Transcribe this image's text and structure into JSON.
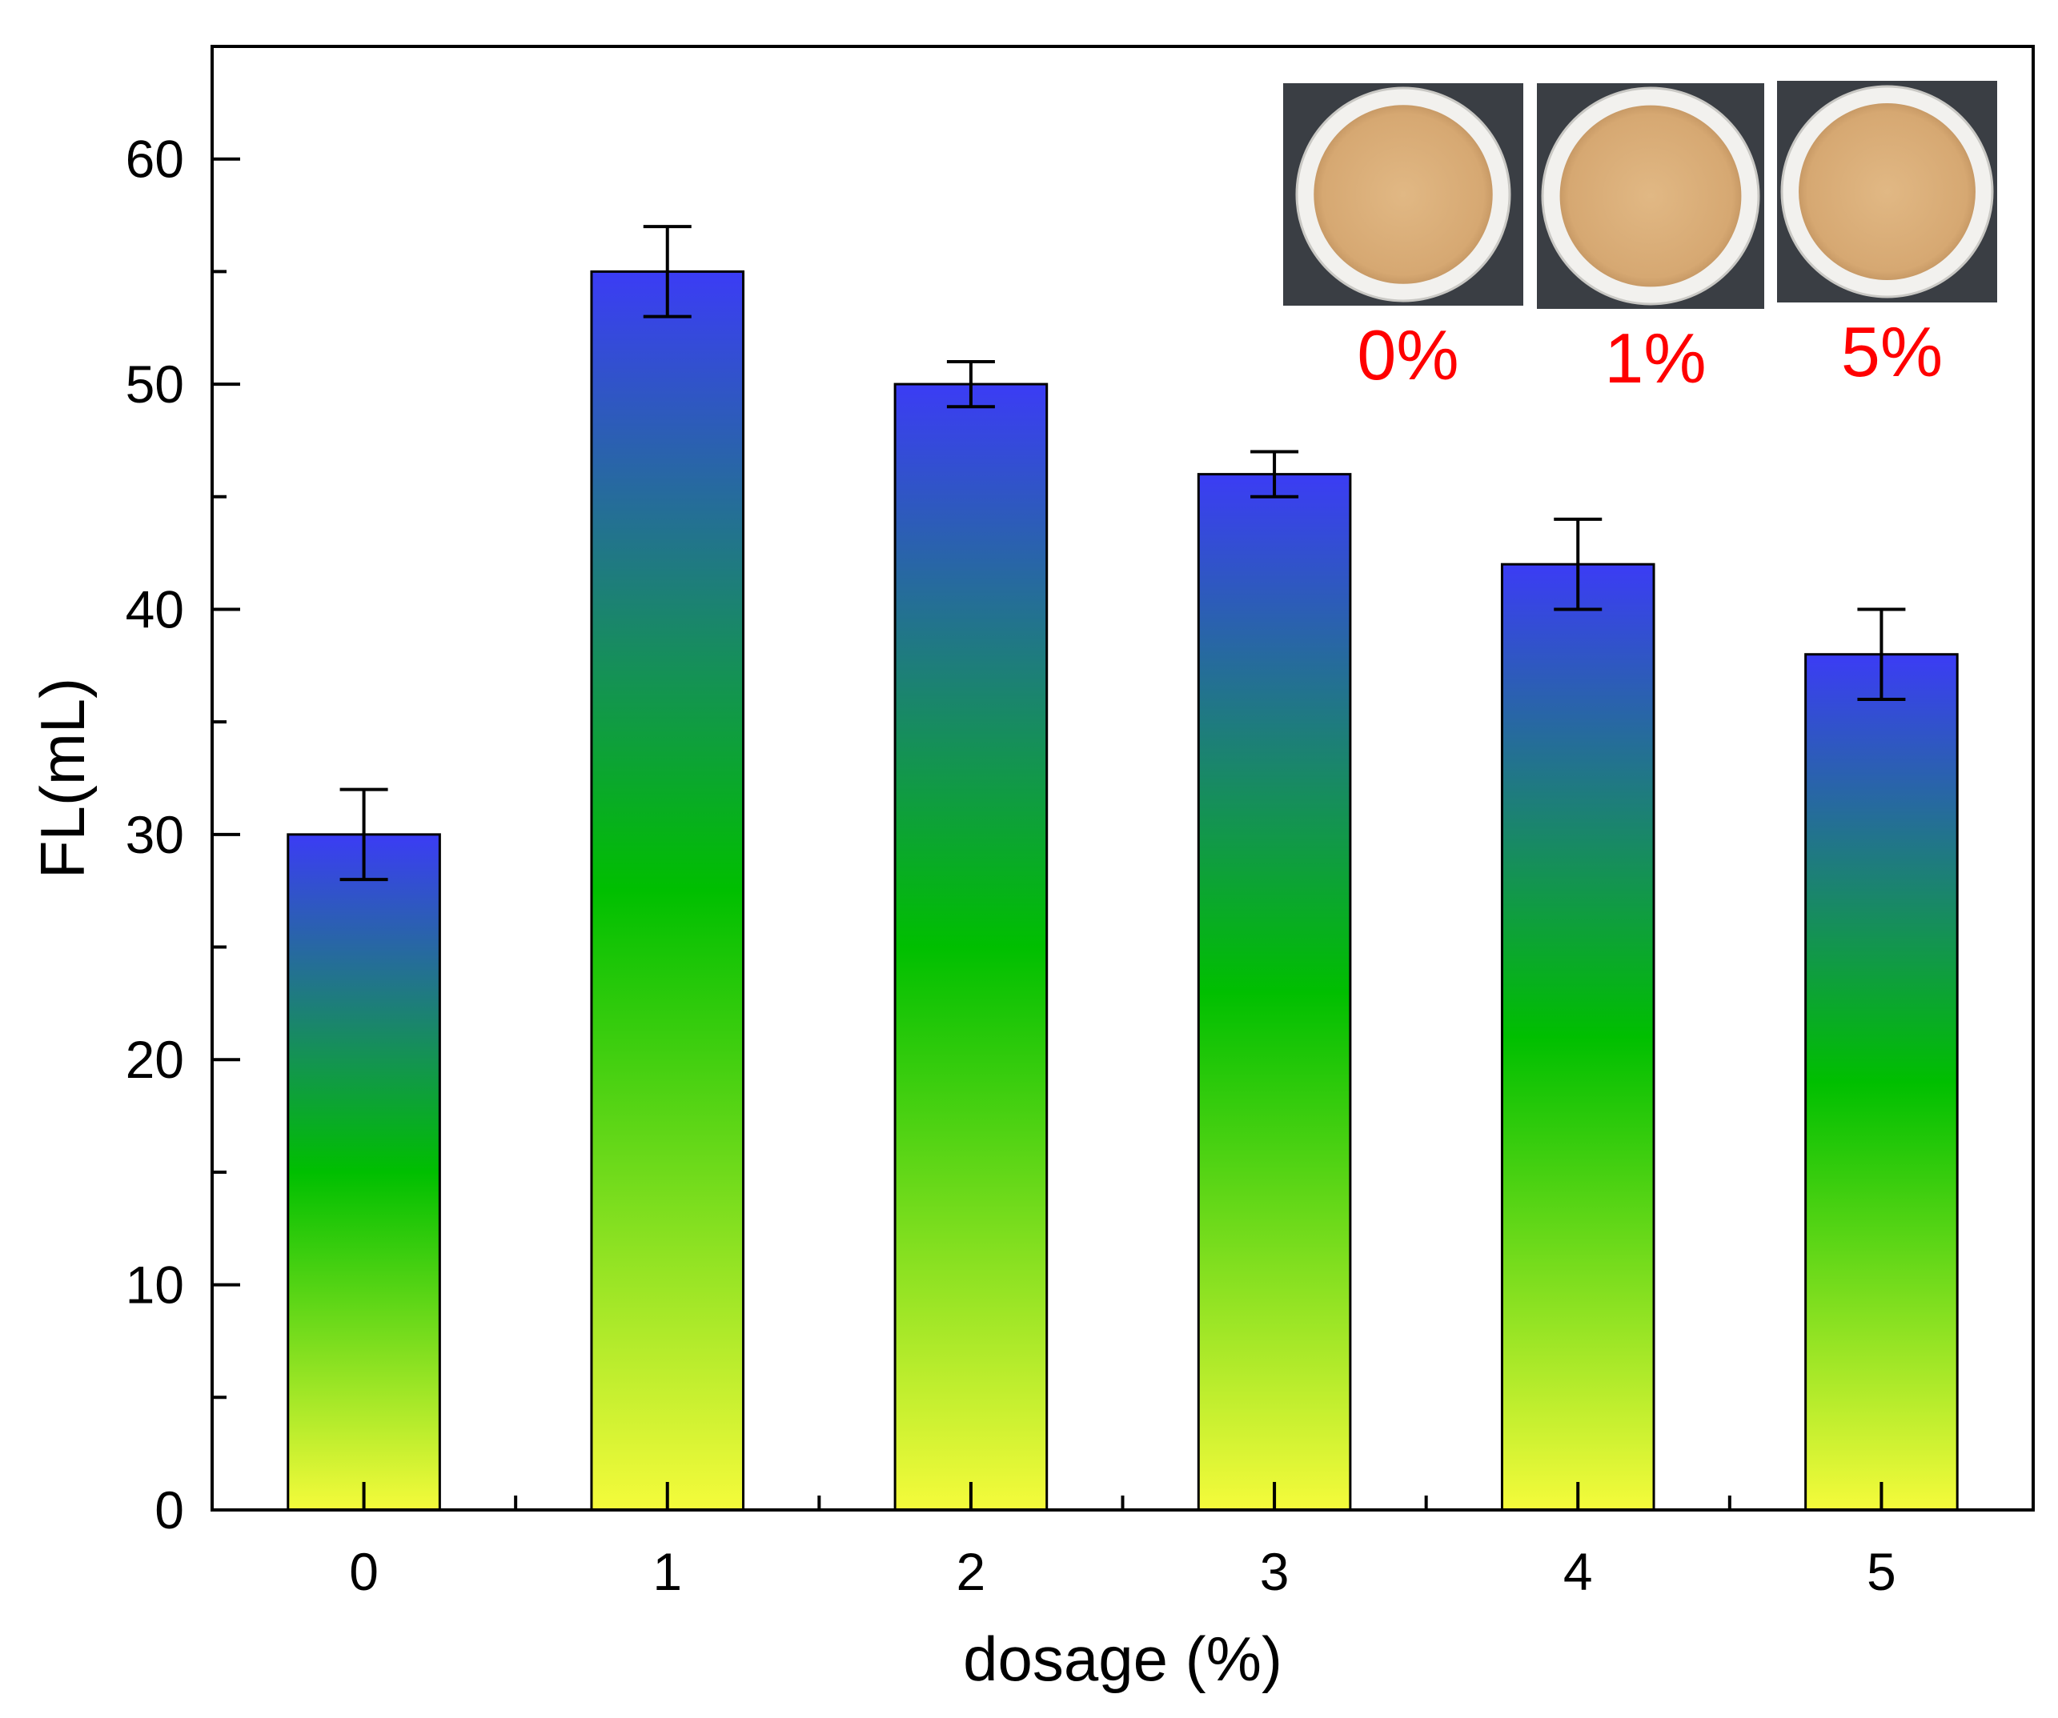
{
  "chart_data": {
    "type": "bar",
    "title": "",
    "xlabel": "dosage (%)",
    "ylabel": "FL(mL)",
    "categories": [
      "0",
      "1",
      "2",
      "3",
      "4",
      "5"
    ],
    "values": [
      30,
      55,
      50,
      46,
      42,
      38
    ],
    "errors": [
      2,
      2,
      1,
      1,
      2,
      2
    ],
    "ylim": [
      0,
      65
    ],
    "yticks": [
      0,
      10,
      20,
      30,
      40,
      50,
      60
    ],
    "yticks_minor": [
      5,
      15,
      25,
      35,
      45,
      55
    ],
    "grid": false,
    "bar_gradient": {
      "top": "#3b3cf5",
      "middle": "#00bf00",
      "bottom": "#f5fb3b"
    },
    "insets": [
      {
        "label": "0%",
        "label_color": "#ff0000"
      },
      {
        "label": "1%",
        "label_color": "#ff0000"
      },
      {
        "label": "5%",
        "label_color": "#ff0000"
      }
    ]
  }
}
